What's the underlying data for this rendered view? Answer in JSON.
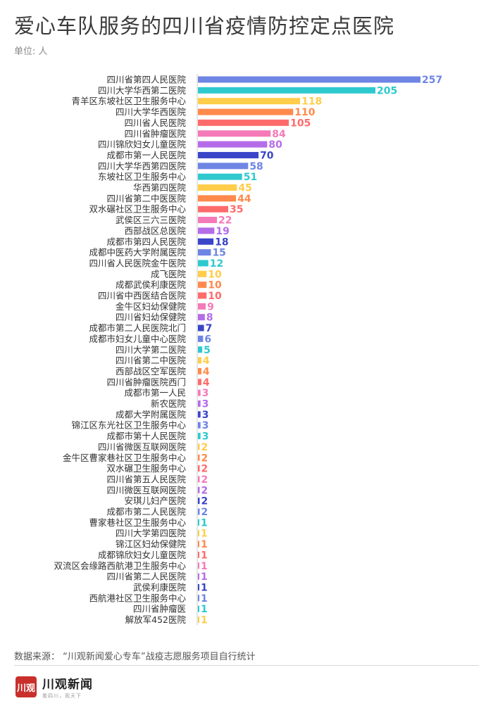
{
  "title": "爱心车队服务的四川省疫情防控定点医院",
  "unit": "单位: 人",
  "source": "数据来源：  “川观新闻爱心专车”战疫志愿服务项目自行统计",
  "brand": {
    "logo_text": "川观",
    "name": "川观新闻",
    "slogan": "看四川，观天下"
  },
  "colors": {
    "palette": [
      "#6e85e4",
      "#2ec9cf",
      "#ffcd4a",
      "#ff8a4c",
      "#ff6b6b",
      "#f47ab8",
      "#b46ce8",
      "#3a45c8"
    ]
  },
  "chart_data": {
    "type": "bar",
    "orientation": "horizontal",
    "categories": [
      "四川省第四人民医院",
      "四川大学华西第二医院",
      "青羊区东坡社区卫生服务中心",
      "四川大学华西医院",
      "四川省人民医院",
      "四川省肿瘤医院",
      "四川锦欣妇女儿童医院",
      "成都市第一人民医院",
      "四川大学华西第四医院",
      "东坡社区卫生服务中心",
      "华西第四医院",
      "四川省第二中医医院",
      "双水碾社区卫生服务中心",
      "武侯区三六三医院",
      "西部战区总医院",
      "成都市第四人民医院",
      "成都中医药大学附属医院",
      "四川省人民医院金牛医院",
      "成飞医院",
      "成都武侯利康医院",
      "四川省中西医结合医院",
      "金牛区妇幼保健院",
      "四川省妇幼保健院",
      "成都市第二人民医院北门",
      "成都市妇女儿童中心医院",
      "四川大学第二医院",
      "四川省第二中医院",
      "西部战区空军医院",
      "四川省肿瘤医院西门",
      "成都市第一人民",
      "新农医院",
      "成都大学附属医院",
      "锦江区东光社区卫生服务中心",
      "成都市第十人民医院",
      "四川省微医互联网医院",
      "金牛区曹家巷社区卫生服务中心",
      "双水碾卫生服务中心",
      "四川省第五人民医院",
      "四川微医互联网医院",
      "安琪儿妇产医院",
      "成都市第二人民医院",
      "曹家巷社区卫生服务中心",
      "四川大学第四医院",
      "锦江区妇幼保健院",
      "成都锦欣妇女儿童医院",
      "双流区会缘路西航港卫生服务中心",
      "四川省第二人民医院",
      "武侯利康医院",
      "西航港社区卫生服务中心",
      "四川省肿瘤医",
      "解放军452医院"
    ],
    "values": [
      257,
      205,
      118,
      110,
      105,
      84,
      80,
      70,
      58,
      51,
      45,
      44,
      35,
      22,
      19,
      18,
      15,
      12,
      10,
      10,
      10,
      9,
      8,
      7,
      6,
      5,
      4,
      4,
      4,
      3,
      3,
      3,
      3,
      3,
      2,
      2,
      2,
      2,
      2,
      2,
      2,
      1,
      1,
      1,
      1,
      1,
      1,
      1,
      1,
      1,
      1
    ],
    "xlim": [
      0,
      257
    ],
    "grid": false,
    "legend": "none"
  }
}
